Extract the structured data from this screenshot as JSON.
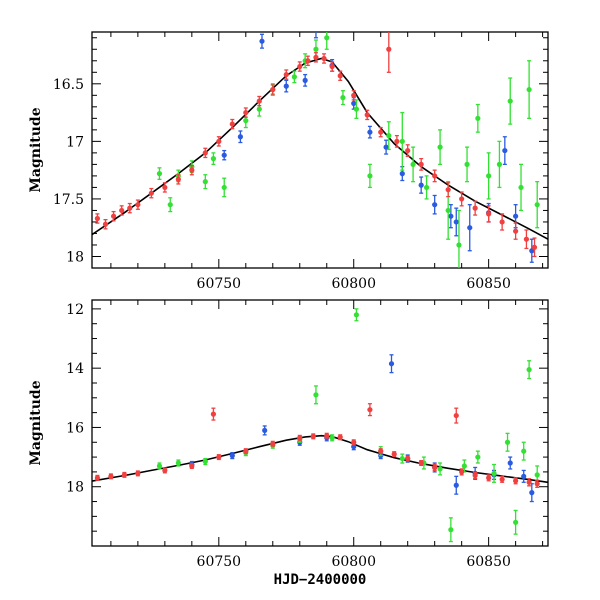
{
  "chart_data": [
    {
      "type": "scatter",
      "panel": "top",
      "title": "",
      "xlabel": "",
      "ylabel": "Magnitude",
      "xlim": [
        60703,
        60872
      ],
      "ylim": [
        18.1,
        16.05
      ],
      "y_inverted": true,
      "xticks": [
        60750,
        60800,
        60850
      ],
      "xtick_labels": [
        "60750",
        "60800",
        "60850"
      ],
      "yticks": [
        16.5,
        17,
        17.5,
        18
      ],
      "ytick_labels": [
        "16.5",
        "17",
        "17.5",
        "18"
      ],
      "grid": false,
      "legend": "none",
      "series": [
        {
          "color": "#2a5be0",
          "x": [
            60752,
            60758,
            60766,
            60775,
            60782,
            60786,
            60792,
            60800,
            60806,
            60812,
            60818,
            60825,
            60830,
            60836,
            60838,
            60843,
            60850,
            60856,
            60860,
            60866
          ],
          "y": [
            17.12,
            16.96,
            16.13,
            16.52,
            16.47,
            16.02,
            16.34,
            16.67,
            16.92,
            17.05,
            17.28,
            17.38,
            17.55,
            17.65,
            17.7,
            17.75,
            17.62,
            17.08,
            17.65,
            17.95
          ],
          "err": [
            0.04,
            0.05,
            0.06,
            0.05,
            0.05,
            0.08,
            0.05,
            0.05,
            0.05,
            0.06,
            0.06,
            0.07,
            0.08,
            0.1,
            0.12,
            0.2,
            0.08,
            0.12,
            0.1,
            0.1
          ]
        },
        {
          "color": "#33e033",
          "x": [
            60728,
            60732,
            60735,
            60740,
            60745,
            60748,
            60752,
            60760,
            60765,
            60770,
            60778,
            60782,
            60786,
            60790,
            60796,
            60801,
            60806,
            60813,
            60818,
            60822,
            60827,
            60832,
            60835,
            60839,
            60842,
            60846,
            60850,
            60854,
            60858,
            60862,
            60865,
            60868
          ],
          "y": [
            17.28,
            17.55,
            17.3,
            17.22,
            17.35,
            17.15,
            17.4,
            16.82,
            16.72,
            16.55,
            16.44,
            16.3,
            16.2,
            16.1,
            16.62,
            16.72,
            17.3,
            16.95,
            17.0,
            17.2,
            17.4,
            17.05,
            17.6,
            17.9,
            17.2,
            16.8,
            17.3,
            17.2,
            16.65,
            17.4,
            16.55,
            17.55
          ],
          "err": [
            0.05,
            0.06,
            0.05,
            0.05,
            0.06,
            0.05,
            0.08,
            0.06,
            0.06,
            0.05,
            0.05,
            0.06,
            0.08,
            0.1,
            0.06,
            0.08,
            0.1,
            0.12,
            0.25,
            0.15,
            0.1,
            0.15,
            0.25,
            0.3,
            0.15,
            0.12,
            0.2,
            0.2,
            0.2,
            0.2,
            0.25,
            0.2
          ]
        },
        {
          "color": "#f04040",
          "x": [
            60705,
            60708,
            60711,
            60714,
            60717,
            60720,
            60725,
            60730,
            60735,
            60740,
            60745,
            60750,
            60755,
            60760,
            60765,
            60770,
            60775,
            60780,
            60783,
            60786,
            60789,
            60792,
            60795,
            60800,
            60805,
            60810,
            60813,
            60816,
            60820,
            60825,
            60830,
            60835,
            60840,
            60845,
            60850,
            60855,
            60860,
            60864,
            60867
          ],
          "y": [
            17.67,
            17.72,
            17.65,
            17.6,
            17.58,
            17.55,
            17.45,
            17.4,
            17.33,
            17.25,
            17.1,
            17.0,
            16.85,
            16.75,
            16.65,
            16.55,
            16.42,
            16.35,
            16.3,
            16.27,
            16.28,
            16.35,
            16.43,
            16.6,
            16.77,
            16.92,
            16.2,
            17.0,
            17.08,
            17.2,
            17.3,
            17.42,
            17.5,
            17.58,
            17.63,
            17.7,
            17.78,
            17.85,
            17.92
          ],
          "err": [
            0.04,
            0.04,
            0.04,
            0.04,
            0.04,
            0.04,
            0.04,
            0.04,
            0.04,
            0.04,
            0.04,
            0.04,
            0.04,
            0.04,
            0.04,
            0.04,
            0.04,
            0.04,
            0.04,
            0.04,
            0.04,
            0.04,
            0.04,
            0.04,
            0.04,
            0.04,
            0.2,
            0.05,
            0.05,
            0.05,
            0.05,
            0.06,
            0.06,
            0.06,
            0.07,
            0.07,
            0.07,
            0.08,
            0.08
          ]
        }
      ],
      "model_curve": {
        "color": "#000000",
        "x": [
          60703,
          60715,
          60725,
          60735,
          60745,
          60755,
          60765,
          60775,
          60782,
          60788,
          60792,
          60798,
          60805,
          60815,
          60825,
          60835,
          60845,
          60855,
          60865,
          60872
        ],
        "y": [
          17.81,
          17.62,
          17.45,
          17.28,
          17.1,
          16.88,
          16.65,
          16.43,
          16.32,
          16.28,
          16.31,
          16.48,
          16.75,
          17.02,
          17.22,
          17.38,
          17.52,
          17.64,
          17.76,
          17.85
        ]
      }
    },
    {
      "type": "scatter",
      "panel": "bottom",
      "title": "",
      "xlabel": "HJD−2400000",
      "ylabel": "Magnitude",
      "xlim": [
        60703,
        60872
      ],
      "ylim": [
        20.0,
        11.7
      ],
      "y_inverted": true,
      "xticks": [
        60750,
        60800,
        60850
      ],
      "xtick_labels": [
        "60750",
        "60800",
        "60850"
      ],
      "yticks": [
        12,
        14,
        16,
        18
      ],
      "ytick_labels": [
        "12",
        "14",
        "16",
        "18"
      ],
      "grid": false,
      "legend": "none",
      "series": [
        {
          "color": "#2a5be0",
          "x": [
            60740,
            60755,
            60767,
            60780,
            60790,
            60800,
            60810,
            60814,
            60820,
            60830,
            60838,
            60845,
            60852,
            60858,
            60863,
            60866
          ],
          "y": [
            17.25,
            16.95,
            16.1,
            16.5,
            16.35,
            16.65,
            16.95,
            13.85,
            17.05,
            17.35,
            17.95,
            17.55,
            17.6,
            17.2,
            17.65,
            18.2
          ],
          "err": [
            0.1,
            0.1,
            0.15,
            0.1,
            0.1,
            0.1,
            0.1,
            0.3,
            0.12,
            0.15,
            0.3,
            0.2,
            0.15,
            0.2,
            0.2,
            0.3
          ]
        },
        {
          "color": "#33e033",
          "x": [
            60728,
            60735,
            60745,
            60760,
            60770,
            60780,
            60786,
            60792,
            60801,
            60810,
            60818,
            60826,
            60832,
            60836,
            60841,
            60846,
            60852,
            60857,
            60860,
            60863,
            60865,
            60868
          ],
          "y": [
            17.3,
            17.2,
            17.15,
            16.85,
            16.6,
            16.4,
            14.9,
            16.35,
            12.2,
            16.8,
            17.05,
            17.2,
            17.4,
            19.45,
            17.3,
            17.0,
            17.55,
            16.5,
            19.2,
            16.8,
            14.05,
            17.6
          ],
          "err": [
            0.1,
            0.1,
            0.1,
            0.1,
            0.1,
            0.1,
            0.3,
            0.1,
            0.2,
            0.15,
            0.15,
            0.2,
            0.2,
            0.4,
            0.2,
            0.2,
            0.3,
            0.3,
            0.4,
            0.3,
            0.3,
            0.3
          ]
        },
        {
          "color": "#f04040",
          "x": [
            60705,
            60710,
            60715,
            60720,
            60730,
            60740,
            60748,
            60750,
            60760,
            60770,
            60780,
            60785,
            60790,
            60795,
            60800,
            60806,
            60810,
            60815,
            60820,
            60825,
            60830,
            60838,
            60840,
            60845,
            60850,
            60855,
            60860,
            60865,
            60868
          ],
          "y": [
            17.7,
            17.65,
            17.6,
            17.55,
            17.45,
            17.3,
            15.55,
            17.0,
            16.8,
            16.55,
            16.35,
            16.3,
            16.28,
            16.33,
            16.5,
            15.4,
            16.8,
            16.9,
            17.05,
            17.2,
            17.35,
            15.6,
            17.5,
            17.62,
            17.7,
            17.75,
            17.8,
            17.85,
            17.9
          ],
          "err": [
            0.08,
            0.08,
            0.08,
            0.08,
            0.08,
            0.08,
            0.2,
            0.08,
            0.08,
            0.08,
            0.08,
            0.08,
            0.08,
            0.08,
            0.08,
            0.2,
            0.08,
            0.08,
            0.08,
            0.08,
            0.1,
            0.25,
            0.1,
            0.1,
            0.1,
            0.1,
            0.1,
            0.12,
            0.12
          ]
        }
      ],
      "model_curve": {
        "color": "#000000",
        "x": [
          60703,
          60715,
          60725,
          60735,
          60745,
          60755,
          60765,
          60775,
          60782,
          60788,
          60792,
          60798,
          60805,
          60815,
          60825,
          60835,
          60845,
          60855,
          60865,
          60872
        ],
        "y": [
          17.81,
          17.62,
          17.45,
          17.28,
          17.1,
          16.88,
          16.65,
          16.43,
          16.32,
          16.28,
          16.31,
          16.48,
          16.75,
          17.02,
          17.22,
          17.38,
          17.52,
          17.64,
          17.76,
          17.85
        ]
      }
    }
  ]
}
